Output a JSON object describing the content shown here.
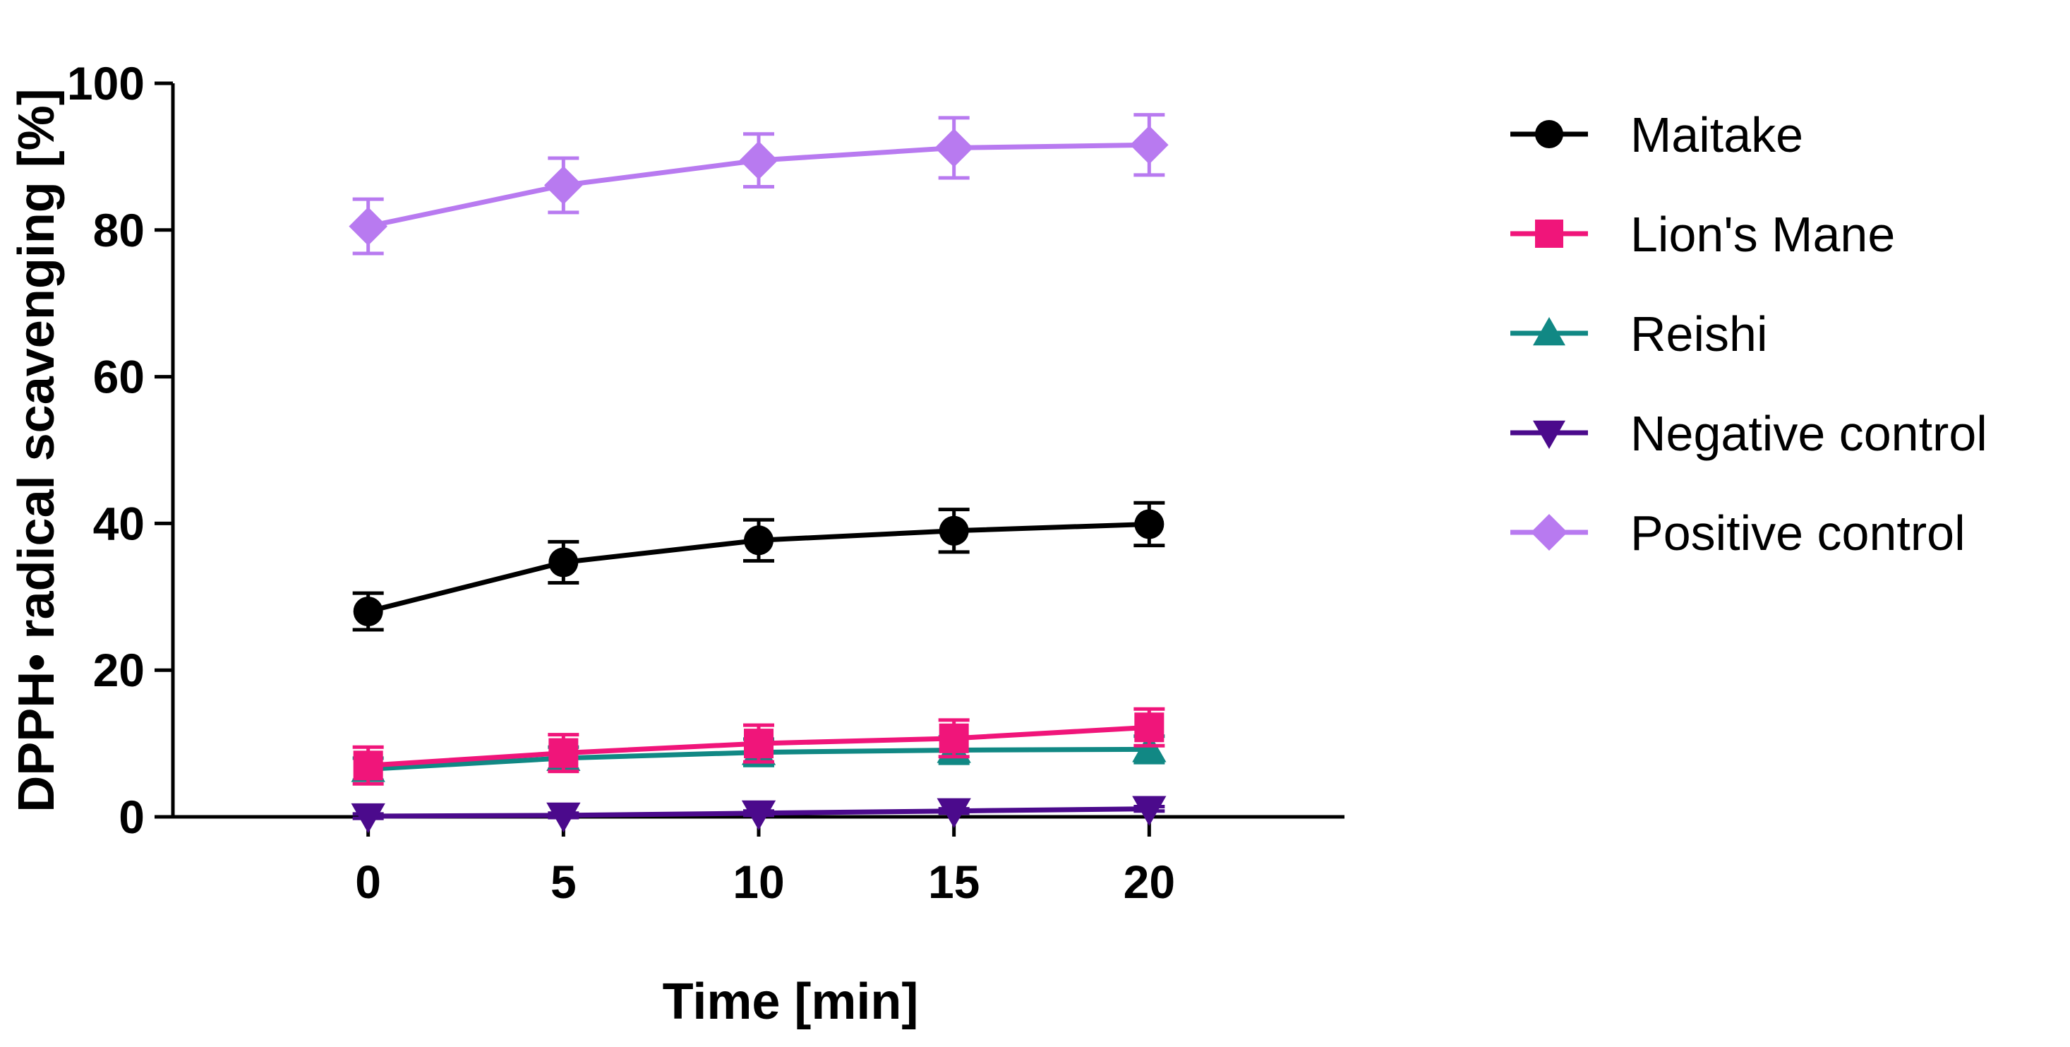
{
  "chart_data": {
    "type": "line",
    "title": "",
    "xlabel": "Time [min]",
    "ylabel": "DPPH• radical scavenging [%]",
    "x": [
      0,
      5,
      10,
      15,
      20
    ],
    "xticks": [
      "0",
      "5",
      "10",
      "15",
      "20"
    ],
    "yticks": [
      "0",
      "20",
      "40",
      "60",
      "80",
      "100"
    ],
    "xlim": [
      -5,
      25
    ],
    "ylim": [
      0,
      100
    ],
    "grid": false,
    "legend_position": "right",
    "series": [
      {
        "name": "Maitake",
        "color": "#000000",
        "marker": "circle",
        "values": [
          28,
          34.7,
          37.7,
          39,
          39.9
        ],
        "errors": [
          2.5,
          2.8,
          2.8,
          2.9,
          2.9
        ]
      },
      {
        "name": "Lion's Mane",
        "color": "#f0157a",
        "marker": "square",
        "values": [
          7,
          8.7,
          10,
          10.7,
          12.2
        ],
        "errors": [
          2.5,
          2.5,
          2.5,
          2.5,
          2.5
        ]
      },
      {
        "name": "Reishi",
        "color": "#118884",
        "marker": "triangle-up",
        "values": [
          6.5,
          8,
          8.8,
          9.1,
          9.2
        ],
        "errors": [
          1.5,
          1.5,
          1.8,
          1.8,
          1.8
        ]
      },
      {
        "name": "Negative control",
        "color": "#4b0a8c",
        "marker": "triangle-down",
        "values": [
          0.1,
          0.2,
          0.5,
          0.8,
          1.1
        ],
        "errors": [
          0.3,
          0.3,
          0.3,
          0.3,
          0.3
        ]
      },
      {
        "name": "Positive control",
        "color": "#b87af0",
        "marker": "diamond",
        "values": [
          80.5,
          86.1,
          89.5,
          91.2,
          91.6
        ],
        "errors": [
          3.7,
          3.7,
          3.6,
          4.1,
          4.1
        ]
      }
    ]
  }
}
